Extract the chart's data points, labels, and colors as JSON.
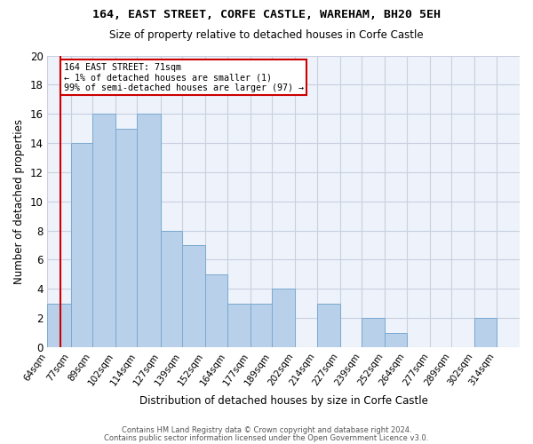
{
  "title1": "164, EAST STREET, CORFE CASTLE, WAREHAM, BH20 5EH",
  "title2": "Size of property relative to detached houses in Corfe Castle",
  "xlabel": "Distribution of detached houses by size in Corfe Castle",
  "ylabel": "Number of detached properties",
  "categories": [
    "64sqm",
    "77sqm",
    "89sqm",
    "102sqm",
    "114sqm",
    "127sqm",
    "139sqm",
    "152sqm",
    "164sqm",
    "177sqm",
    "189sqm",
    "202sqm",
    "214sqm",
    "227sqm",
    "239sqm",
    "252sqm",
    "264sqm",
    "277sqm",
    "289sqm",
    "302sqm",
    "314sqm"
  ],
  "values": [
    3,
    14,
    16,
    15,
    16,
    8,
    7,
    5,
    3,
    3,
    4,
    0,
    3,
    0,
    2,
    1,
    0,
    0,
    0,
    2,
    0
  ],
  "bin_edges": [
    64,
    77,
    89,
    102,
    114,
    127,
    139,
    152,
    164,
    177,
    189,
    202,
    214,
    227,
    239,
    252,
    264,
    277,
    289,
    302,
    314,
    327
  ],
  "bar_color": "#b8d0ea",
  "bar_edge_color": "#7aaad0",
  "vline_x": 71,
  "annotation_title": "164 EAST STREET: 71sqm",
  "annotation_line1": "← 1% of detached houses are smaller (1)",
  "annotation_line2": "99% of semi-detached houses are larger (97) →",
  "vline_color": "#cc0000",
  "annotation_box_color": "#cc0000",
  "ylim": [
    0,
    20
  ],
  "yticks": [
    0,
    2,
    4,
    6,
    8,
    10,
    12,
    14,
    16,
    18,
    20
  ],
  "footer1": "Contains HM Land Registry data © Crown copyright and database right 2024.",
  "footer2": "Contains public sector information licensed under the Open Government Licence v3.0.",
  "bg_color": "#eef2fa",
  "grid_color": "#c8d0e0"
}
